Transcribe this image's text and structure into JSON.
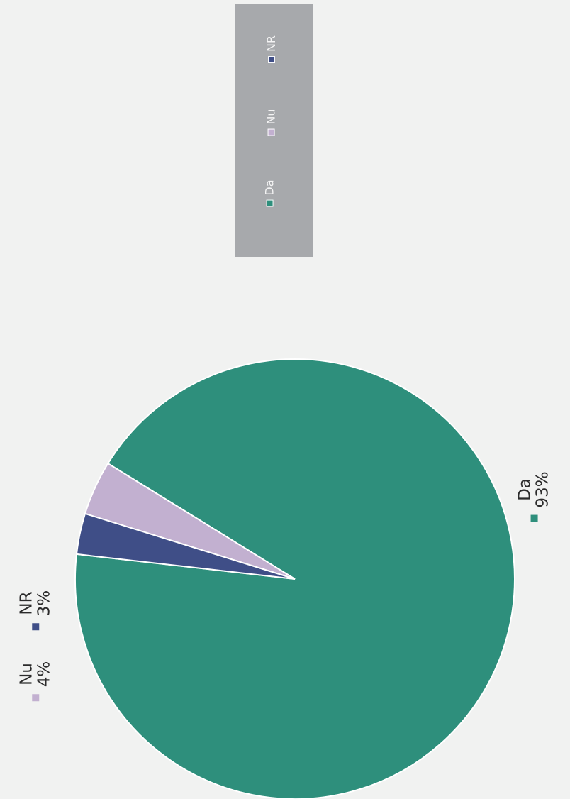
{
  "chart_data": {
    "type": "pie",
    "categories": [
      "Da",
      "Nu",
      "NR"
    ],
    "values": [
      93,
      4,
      3
    ],
    "labels": [
      "93%",
      "4%",
      "3%"
    ],
    "colors": [
      "#2e8f7c",
      "#c2b0d0",
      "#3f4e87"
    ],
    "legend": {
      "entries": [
        "Da",
        "Nu",
        "NR"
      ],
      "placement": "right"
    },
    "title": ""
  }
}
